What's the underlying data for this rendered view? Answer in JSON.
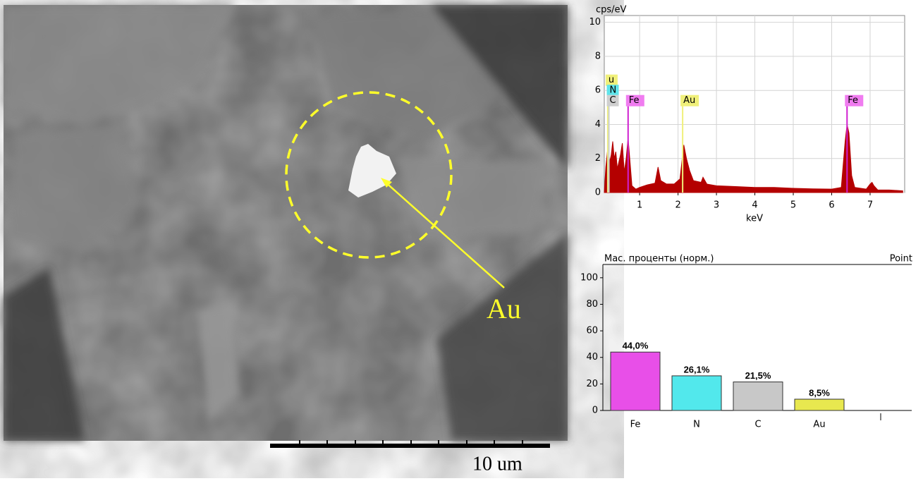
{
  "sem_image": {
    "marker_label": "Au",
    "scale_bar_label": "10 um"
  },
  "chart_data": [
    {
      "type": "area",
      "y_label": "cps/eV",
      "x_label": "keV",
      "color": "#b40000",
      "x": [
        0.08,
        0.12,
        0.18,
        0.22,
        0.26,
        0.3,
        0.34,
        0.38,
        0.42,
        0.46,
        0.5,
        0.55,
        0.6,
        0.65,
        0.7,
        0.75,
        0.8,
        0.9,
        1.0,
        1.2,
        1.4,
        1.48,
        1.55,
        1.7,
        1.9,
        2.05,
        2.15,
        2.22,
        2.3,
        2.4,
        2.6,
        2.65,
        2.75,
        3.0,
        3.5,
        4.0,
        4.5,
        5.0,
        5.5,
        6.0,
        6.25,
        6.35,
        6.4,
        6.45,
        6.52,
        6.6,
        6.9,
        7.0,
        7.05,
        7.1,
        7.2,
        7.5,
        7.85
      ],
      "values": [
        0,
        1.5,
        2.8,
        1.8,
        2.2,
        3.0,
        2.0,
        2.4,
        1.4,
        1.8,
        2.2,
        2.9,
        1.2,
        2.0,
        3.2,
        1.8,
        0.4,
        0.2,
        0.3,
        0.45,
        0.55,
        1.5,
        0.7,
        0.5,
        0.5,
        0.8,
        2.8,
        2.0,
        1.3,
        0.7,
        0.6,
        0.9,
        0.5,
        0.4,
        0.35,
        0.3,
        0.3,
        0.25,
        0.22,
        0.2,
        0.3,
        3.0,
        4.0,
        3.5,
        1.0,
        0.3,
        0.2,
        0.5,
        0.6,
        0.4,
        0.15,
        0.15,
        0.1
      ],
      "xlim": [
        0.08,
        7.9
      ],
      "ylim": [
        0,
        10.4
      ],
      "xticks": [
        1,
        2,
        3,
        4,
        5,
        6,
        7
      ],
      "yticks": [
        0,
        2,
        4,
        6,
        8,
        10
      ],
      "grid": true,
      "annotations": [
        {
          "label": "u",
          "x": 0.17,
          "y": 6.6,
          "color": "#f0f07a"
        },
        {
          "label": "N",
          "x": 0.2,
          "y": 6.0,
          "color": "#5fe4ea"
        },
        {
          "label": "C",
          "x": 0.2,
          "y": 5.4,
          "color": "#cfcfcf"
        },
        {
          "label": "Fe",
          "x": 0.7,
          "y": 5.4,
          "color": "#f07cf0"
        },
        {
          "label": "Au",
          "x": 2.12,
          "y": 5.4,
          "color": "#f0f07a"
        },
        {
          "label": "Fe",
          "x": 6.4,
          "y": 5.4,
          "color": "#f07cf0"
        }
      ]
    },
    {
      "type": "bar",
      "title": "Мас. проценты (норм.)",
      "subtitle": "Point",
      "categories": [
        "Fe",
        "N",
        "C",
        "Au",
        null
      ],
      "values": [
        44.0,
        26.1,
        21.5,
        8.5,
        null
      ],
      "value_labels": [
        "44,0%",
        "26,1%",
        "21,5%",
        "8,5%",
        null
      ],
      "colors": [
        "#e84fe8",
        "#52e8ec",
        "#c8c8c8",
        "#e8e84f",
        null
      ],
      "ylim": [
        0,
        110
      ],
      "yticks": [
        0,
        20,
        40,
        60,
        80,
        100
      ]
    }
  ]
}
